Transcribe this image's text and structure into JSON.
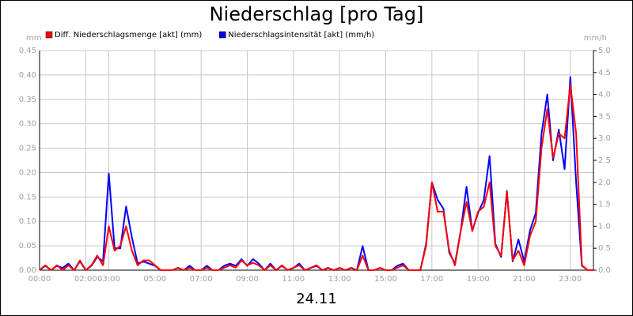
{
  "chart_data": {
    "type": "line",
    "title": "Niederschlag [pro Tag]",
    "x_label": "24.11",
    "y_label": "mm",
    "y2_label": "mm/h",
    "x": [
      0,
      0.25,
      0.5,
      0.75,
      1,
      1.25,
      1.5,
      1.75,
      2,
      2.25,
      2.5,
      2.75,
      3,
      3.25,
      3.5,
      3.75,
      4,
      4.25,
      4.5,
      4.75,
      5,
      5.25,
      5.5,
      5.75,
      6,
      6.25,
      6.5,
      6.75,
      7,
      7.25,
      7.5,
      7.75,
      8,
      8.25,
      8.5,
      8.75,
      9,
      9.25,
      9.5,
      9.75,
      10,
      10.25,
      10.5,
      10.75,
      11,
      11.25,
      11.5,
      11.75,
      12,
      12.25,
      12.5,
      12.75,
      13,
      13.25,
      13.5,
      13.75,
      14,
      14.25,
      14.5,
      14.75,
      15,
      15.25,
      15.5,
      15.75,
      16,
      16.25,
      16.5,
      16.75,
      17,
      17.25,
      17.5,
      17.75,
      18,
      18.25,
      18.5,
      18.75,
      19,
      19.25,
      19.5,
      19.75,
      20,
      20.25,
      20.5,
      20.75,
      21,
      21.25,
      21.5,
      21.75,
      22,
      22.25,
      22.5,
      22.75,
      23,
      23.25,
      23.5,
      23.75,
      24
    ],
    "series": [
      {
        "name": "Niederschlagsintensität [akt] (mm/h)",
        "color": "#0000ff",
        "axis": "y2",
        "values": [
          0,
          0.1,
          0,
          0.1,
          0.05,
          0.15,
          0,
          0.2,
          0,
          0.1,
          0.3,
          0.2,
          2.2,
          0.5,
          0.5,
          1.45,
          0.75,
          0.15,
          0.2,
          0.15,
          0.1,
          0,
          0,
          0,
          0.05,
          0,
          0.1,
          0,
          0,
          0.1,
          0,
          0,
          0.1,
          0.15,
          0.1,
          0.25,
          0.1,
          0.25,
          0.15,
          0,
          0.15,
          0,
          0.1,
          0,
          0.05,
          0.15,
          0,
          0.05,
          0.1,
          0,
          0.05,
          0,
          0.05,
          0,
          0.05,
          0,
          0.55,
          0,
          0,
          0.05,
          0,
          0,
          0.1,
          0.15,
          0,
          0,
          0,
          0.6,
          2.0,
          1.6,
          1.4,
          0.4,
          0.15,
          0.9,
          1.9,
          0.9,
          1.3,
          1.6,
          2.6,
          0.6,
          0.3,
          1.8,
          0.2,
          0.7,
          0.2,
          0.9,
          1.3,
          3.1,
          4.0,
          2.5,
          3.2,
          2.3,
          4.4,
          2.0,
          0.1,
          0,
          0
        ]
      },
      {
        "name": "Diff. Niederschlagsmenge [akt] (mm)",
        "color": "#ff0000",
        "axis": "y",
        "values": [
          0,
          0.01,
          0,
          0.01,
          0,
          0.01,
          0,
          0.02,
          0,
          0.01,
          0.03,
          0.01,
          0.09,
          0.04,
          0.05,
          0.09,
          0.04,
          0.01,
          0.02,
          0.02,
          0.01,
          0,
          0,
          0,
          0.005,
          0,
          0.005,
          0,
          0,
          0.005,
          0,
          0,
          0.005,
          0.01,
          0.005,
          0.02,
          0.01,
          0.015,
          0.01,
          0,
          0.01,
          0,
          0.01,
          0,
          0.005,
          0.01,
          0,
          0.005,
          0.01,
          0,
          0.005,
          0,
          0.005,
          0,
          0.005,
          0,
          0.03,
          0,
          0,
          0.005,
          0,
          0,
          0.005,
          0.01,
          0,
          0,
          0,
          0.05,
          0.18,
          0.12,
          0.12,
          0.04,
          0.01,
          0.08,
          0.14,
          0.08,
          0.12,
          0.13,
          0.18,
          0.05,
          0.03,
          0.16,
          0.02,
          0.04,
          0.01,
          0.07,
          0.1,
          0.25,
          0.33,
          0.23,
          0.28,
          0.27,
          0.38,
          0.28,
          0.01,
          0,
          0
        ]
      }
    ],
    "legend_order": [
      1,
      0
    ],
    "xlim": [
      0,
      24
    ],
    "xticks": [
      {
        "value": 0,
        "label": "00:00"
      },
      {
        "value": 2,
        "label": "02:00"
      },
      {
        "value": 3,
        "label": "03:00"
      },
      {
        "value": 5,
        "label": "05:00"
      },
      {
        "value": 7,
        "label": "07:00"
      },
      {
        "value": 9,
        "label": "09:00"
      },
      {
        "value": 11,
        "label": "11:00"
      },
      {
        "value": 13,
        "label": "13:00"
      },
      {
        "value": 15,
        "label": "15:00"
      },
      {
        "value": 17,
        "label": "17:00"
      },
      {
        "value": 19,
        "label": "19:00"
      },
      {
        "value": 21,
        "label": "21:00"
      },
      {
        "value": 23,
        "label": "23:00"
      }
    ],
    "ylim": [
      0,
      0.45
    ],
    "yticks": [
      {
        "value": 0,
        "label": "0.00"
      },
      {
        "value": 0.05,
        "label": "0.05"
      },
      {
        "value": 0.1,
        "label": "0.10"
      },
      {
        "value": 0.15,
        "label": "0.15"
      },
      {
        "value": 0.2,
        "label": "0.20"
      },
      {
        "value": 0.25,
        "label": "0.25"
      },
      {
        "value": 0.3,
        "label": "0.30"
      },
      {
        "value": 0.35,
        "label": "0.35"
      },
      {
        "value": 0.4,
        "label": "0.40"
      },
      {
        "value": 0.45,
        "label": "0.45"
      }
    ],
    "y2lim": [
      0,
      5
    ],
    "y2ticks": [
      {
        "value": 0,
        "label": "0.0"
      },
      {
        "value": 0.5,
        "label": "0.5"
      },
      {
        "value": 1,
        "label": "1.0"
      },
      {
        "value": 1.5,
        "label": "1.5"
      },
      {
        "value": 2,
        "label": "2.0"
      },
      {
        "value": 2.5,
        "label": "2.5"
      },
      {
        "value": 3,
        "label": "3.0"
      },
      {
        "value": 3.5,
        "label": "3.5"
      },
      {
        "value": 4,
        "label": "4.0"
      },
      {
        "value": 4.5,
        "label": "4.5"
      },
      {
        "value": 5,
        "label": "5.0"
      }
    ],
    "grid": true
  }
}
